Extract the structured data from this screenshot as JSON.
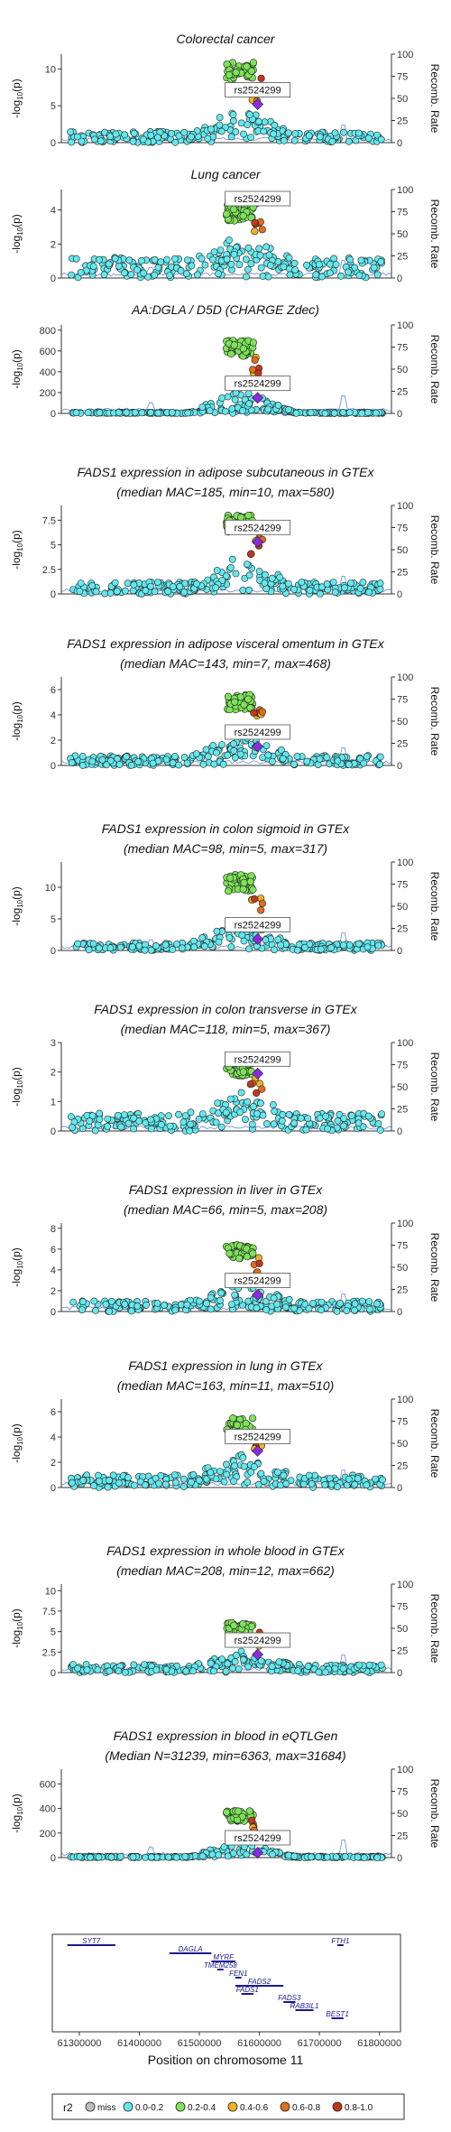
{
  "figure": {
    "variant": "rs2524299",
    "xlabel": "Position on chromosome 11",
    "x_ticks": [
      "61300000",
      "61400000",
      "61500000",
      "61600000",
      "61700000",
      "61800000"
    ],
    "ylabel_left": "-log10(p)",
    "ylabel_right": "Recomb. Rate",
    "right_ticks": [
      "0",
      "25",
      "50",
      "75",
      "100"
    ]
  },
  "legend": {
    "title": "r2",
    "items": [
      {
        "label": "miss",
        "color": "#bdbdbd"
      },
      {
        "label": "0.0-0.2",
        "color": "#64e8ee"
      },
      {
        "label": "0.2-0.4",
        "color": "#7ee35a"
      },
      {
        "label": "0.4-0.6",
        "color": "#f0b224"
      },
      {
        "label": "0.6-0.8",
        "color": "#e26b1d"
      },
      {
        "label": "0.8-1.0",
        "color": "#c0391f"
      }
    ],
    "lead_color": "#8a2be2"
  },
  "genes": [
    {
      "name": "SYT7",
      "start": 61280000,
      "end": 61360000,
      "row": 0
    },
    {
      "name": "FTH1",
      "start": 61730000,
      "end": 61740000,
      "row": 0
    },
    {
      "name": "DAGLA",
      "start": 61450000,
      "end": 61520000,
      "row": 1
    },
    {
      "name": "MYRF",
      "start": 61520000,
      "end": 61560000,
      "row": 2
    },
    {
      "name": "TMEM258",
      "start": 61530000,
      "end": 61540000,
      "row": 3
    },
    {
      "name": "FEN1",
      "start": 61560000,
      "end": 61570000,
      "row": 4
    },
    {
      "name": "FADS2",
      "start": 61560000,
      "end": 61640000,
      "row": 5
    },
    {
      "name": "FADS1",
      "start": 61570000,
      "end": 61590000,
      "row": 6
    },
    {
      "name": "FADS3",
      "start": 61640000,
      "end": 61660000,
      "row": 7
    },
    {
      "name": "RAB3IL1",
      "start": 61660000,
      "end": 61690000,
      "row": 8
    },
    {
      "name": "BEST1",
      "start": 61720000,
      "end": 61740000,
      "row": 9
    }
  ],
  "chart_data": [
    {
      "type": "scatter",
      "title": "Colorectal cancer",
      "subtitle": "",
      "ylim": [
        0,
        12
      ],
      "y_ticks": [
        0,
        5,
        10
      ],
      "peak": 11,
      "lead": 5.2,
      "baseline": 1.5
    },
    {
      "type": "scatter",
      "title": "Lung cancer",
      "subtitle": "",
      "ylim": [
        0,
        5.2
      ],
      "y_ticks": [
        0,
        2,
        4
      ],
      "peak": 4.3,
      "lead": 4.5,
      "baseline": 1.2
    },
    {
      "type": "scatter",
      "title": "AA:DGLA / D5D (CHARGE Zdec)",
      "subtitle": "",
      "ylim": [
        0,
        850
      ],
      "y_ticks": [
        0,
        200,
        400,
        600,
        800
      ],
      "peak": 700,
      "lead": 150,
      "baseline": 10
    },
    {
      "type": "scatter",
      "title": "FADS1 expression in adipose subcutaneous in GTEx",
      "subtitle": "(median MAC=185, min=10, max=580)",
      "ylim": [
        0,
        9
      ],
      "y_ticks": [
        0,
        2.5,
        5,
        7.5
      ],
      "peak": 8,
      "lead": 5.3,
      "baseline": 1.2
    },
    {
      "type": "scatter",
      "title": "FADS1 expression in adipose visceral omentum in GTEx",
      "subtitle": "(median MAC=143, min=7, max=468)",
      "ylim": [
        0,
        7
      ],
      "y_ticks": [
        0,
        2,
        4,
        6
      ],
      "peak": 5.6,
      "lead": 1.5,
      "baseline": 0.8
    },
    {
      "type": "scatter",
      "title": "FADS1 expression in colon sigmoid in GTEx",
      "subtitle": "(median MAC=98, min=5, max=317)",
      "ylim": [
        0,
        14
      ],
      "y_ticks": [
        0,
        5,
        10
      ],
      "peak": 12,
      "lead": 1.8,
      "baseline": 1.2
    },
    {
      "type": "scatter",
      "title": "FADS1 expression in colon transverse in GTEx",
      "subtitle": "(median MAC=118, min=5, max=367)",
      "ylim": [
        0,
        3
      ],
      "y_ticks": [
        0,
        1,
        2,
        3
      ],
      "peak": 2.4,
      "lead": 1.95,
      "baseline": 0.6
    },
    {
      "type": "scatter",
      "title": "FADS1 expression in liver in GTEx",
      "subtitle": "(median MAC=66, min=5, max=208)",
      "ylim": [
        0,
        8.5
      ],
      "y_ticks": [
        0,
        2,
        4,
        6,
        8
      ],
      "peak": 6.5,
      "lead": 1.6,
      "baseline": 1.0
    },
    {
      "type": "scatter",
      "title": "FADS1 expression in lung in GTEx",
      "subtitle": "(median MAC=163, min=11, max=510)",
      "ylim": [
        0,
        7
      ],
      "y_ticks": [
        0,
        2,
        4,
        6
      ],
      "peak": 5.5,
      "lead": 2.9,
      "baseline": 1.0
    },
    {
      "type": "scatter",
      "title": "FADS1 expression in whole blood in GTEx",
      "subtitle": "(median MAC=208, min=12, max=662)",
      "ylim": [
        0,
        10.8
      ],
      "y_ticks": [
        0,
        2.5,
        5,
        7.5,
        10
      ],
      "peak": 6.2,
      "lead": 2.2,
      "baseline": 1.0
    },
    {
      "type": "scatter",
      "title": "FADS1 expression in blood in eQTLGen",
      "subtitle": "(Median N=31239, min=6363, max=31684)",
      "ylim": [
        0,
        720
      ],
      "y_ticks": [
        0,
        200,
        400,
        600
      ],
      "peak": 380,
      "lead": 40,
      "baseline": 10
    }
  ]
}
